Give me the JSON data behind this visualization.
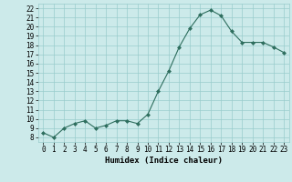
{
  "x": [
    0,
    1,
    2,
    3,
    4,
    5,
    6,
    7,
    8,
    9,
    10,
    11,
    12,
    13,
    14,
    15,
    16,
    17,
    18,
    19,
    20,
    21,
    22,
    23
  ],
  "y": [
    8.5,
    8.0,
    9.0,
    9.5,
    9.8,
    9.0,
    9.3,
    9.8,
    9.8,
    9.5,
    10.5,
    13.0,
    15.2,
    17.8,
    19.8,
    21.3,
    21.8,
    21.2,
    19.5,
    18.3,
    18.3,
    18.3,
    17.8,
    17.2
  ],
  "xlabel": "Humidex (Indice chaleur)",
  "xlim": [
    -0.5,
    23.5
  ],
  "ylim": [
    7.5,
    22.5
  ],
  "yticks": [
    8,
    9,
    10,
    11,
    12,
    13,
    14,
    15,
    16,
    17,
    18,
    19,
    20,
    21,
    22
  ],
  "xticks": [
    0,
    1,
    2,
    3,
    4,
    5,
    6,
    7,
    8,
    9,
    10,
    11,
    12,
    13,
    14,
    15,
    16,
    17,
    18,
    19,
    20,
    21,
    22,
    23
  ],
  "line_color": "#2e6e5e",
  "marker_color": "#2e6e5e",
  "bg_color": "#cceaea",
  "grid_color": "#99cccc",
  "label_fontsize": 6.5,
  "tick_fontsize": 5.5
}
